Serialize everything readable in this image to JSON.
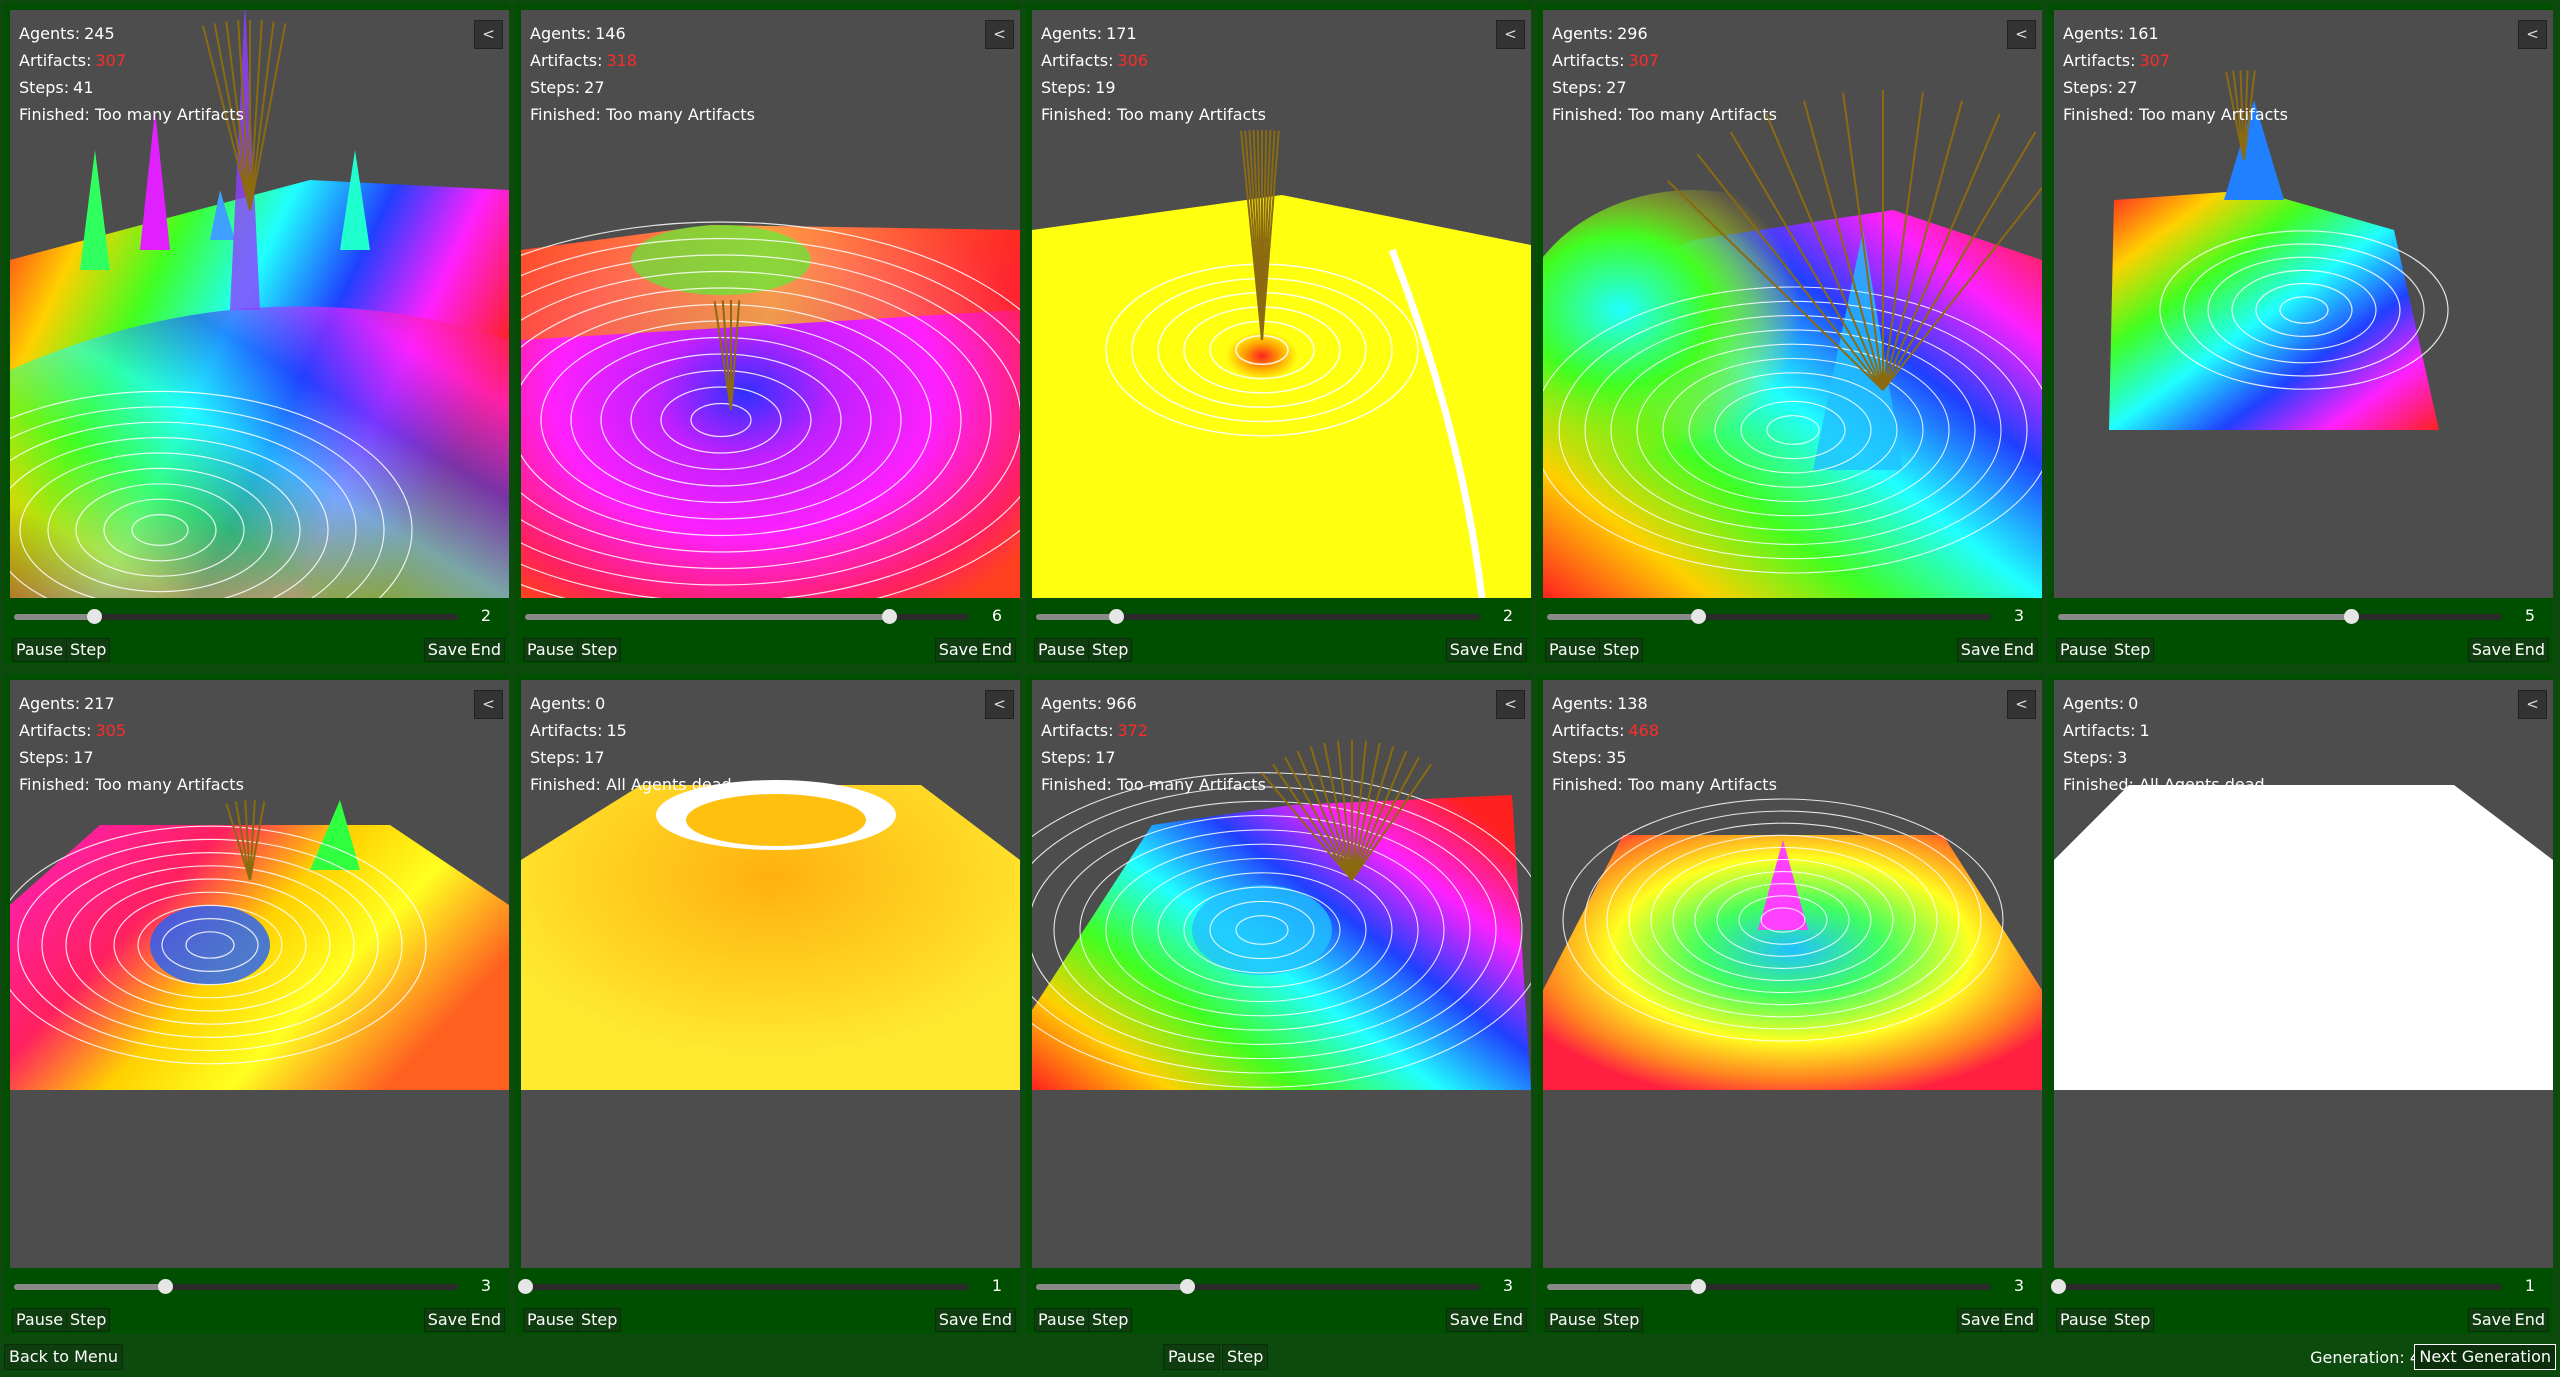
{
  "labels": {
    "agents": "Agents:",
    "artifacts": "Artifacts:",
    "steps": "Steps:",
    "collapse": "<",
    "pause": "Pause",
    "step": "Step",
    "save": "Save",
    "end": "End"
  },
  "cells": [
    {
      "agents": "245",
      "artifacts": "307",
      "artifacts_color": "#ff2a2a",
      "steps": "41",
      "finished": "Finished: Too many Artifacts",
      "slider_value": "2",
      "slider_fraction": 0.18,
      "terrain": "rainbow-peaks"
    },
    {
      "agents": "146",
      "artifacts": "318",
      "artifacts_color": "#ff2a2a",
      "steps": "27",
      "finished": "Finished: Too many Artifacts",
      "slider_value": "6",
      "slider_fraction": 0.82,
      "terrain": "magenta-basin"
    },
    {
      "agents": "171",
      "artifacts": "306",
      "artifacts_color": "#ff2a2a",
      "steps": "19",
      "finished": "Finished: Too many Artifacts",
      "slider_value": "2",
      "slider_fraction": 0.18,
      "terrain": "yellow-plane"
    },
    {
      "agents": "296",
      "artifacts": "307",
      "artifacts_color": "#ff2a2a",
      "steps": "27",
      "finished": "Finished: Too many Artifacts",
      "slider_value": "3",
      "slider_fraction": 0.34,
      "terrain": "rainbow-hills"
    },
    {
      "agents": "161",
      "artifacts": "307",
      "artifacts_color": "#ff2a2a",
      "steps": "27",
      "finished": "Finished: Too many Artifacts",
      "slider_value": "5",
      "slider_fraction": 0.66,
      "terrain": "rainbow-sheet"
    },
    {
      "agents": "217",
      "artifacts": "305",
      "artifacts_color": "#ff2a2a",
      "steps": "17",
      "finished": "Finished: Too many Artifacts",
      "slider_value": "3",
      "slider_fraction": 0.34,
      "terrain": "pink-swirl"
    },
    {
      "agents": "0",
      "artifacts": "15",
      "artifacts_color": "#ffffff",
      "steps": "17",
      "finished": "Finished: All Agents dead",
      "slider_value": "1",
      "slider_fraction": 0.0,
      "terrain": "yellow-ring"
    },
    {
      "agents": "966",
      "artifacts": "372",
      "artifacts_color": "#ff2a2a",
      "steps": "17",
      "finished": "Finished: Too many Artifacts",
      "slider_value": "3",
      "slider_fraction": 0.34,
      "terrain": "rainbow-swirl"
    },
    {
      "agents": "138",
      "artifacts": "468",
      "artifacts_color": "#ff2a2a",
      "steps": "35",
      "finished": "Finished: Too many Artifacts",
      "slider_value": "3",
      "slider_fraction": 0.34,
      "terrain": "red-green-plane"
    },
    {
      "agents": "0",
      "artifacts": "1",
      "artifacts_color": "#ffffff",
      "steps": "3",
      "finished": "Finished: All Agents dead",
      "slider_value": "1",
      "slider_fraction": 0.0,
      "terrain": "white-plane"
    }
  ],
  "footer": {
    "back": "Back to Menu",
    "pause": "Pause",
    "step": "Step",
    "generation_label": "Generation: 4",
    "next": "Next Generation"
  }
}
